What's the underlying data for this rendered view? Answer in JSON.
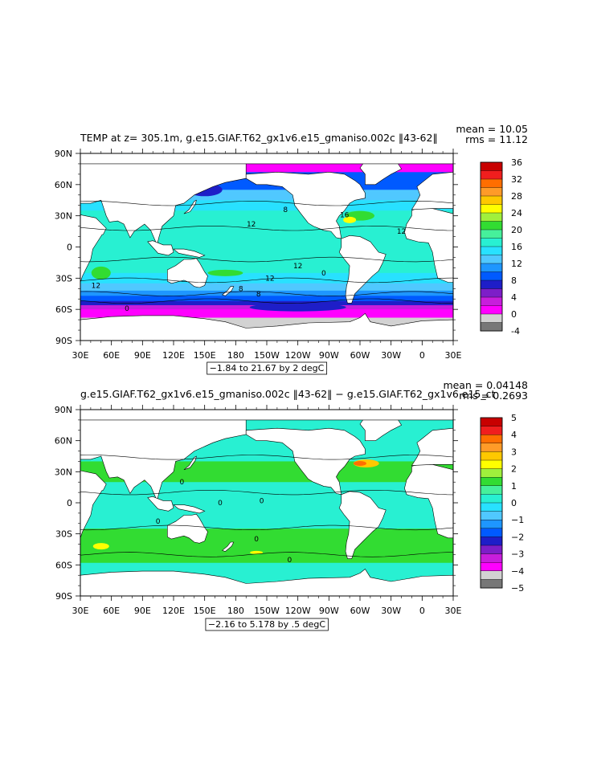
{
  "chart_data": [
    {
      "type": "heatmap",
      "title": "TEMP at z= 305.1m, g.e15.GIAF.T62_gx1v6.e15_gmaniso.002c ‖43-62‖",
      "stat_mean": "mean = 10.05",
      "stat_rms": "rms = 11.12",
      "range_label": "−1.84 to 21.67 by 2 degC",
      "xlim": [
        30,
        390
      ],
      "ylim": [
        -90,
        90
      ],
      "x_ticks": [
        {
          "v": 30,
          "label": "30E"
        },
        {
          "v": 60,
          "label": "60E"
        },
        {
          "v": 90,
          "label": "90E"
        },
        {
          "v": 120,
          "label": "120E"
        },
        {
          "v": 150,
          "label": "150E"
        },
        {
          "v": 180,
          "label": "180"
        },
        {
          "v": 210,
          "label": "150W"
        },
        {
          "v": 240,
          "label": "120W"
        },
        {
          "v": 270,
          "label": "90W"
        },
        {
          "v": 300,
          "label": "60W"
        },
        {
          "v": 330,
          "label": "30W"
        },
        {
          "v": 360,
          "label": "0"
        },
        {
          "v": 390,
          "label": "30E"
        }
      ],
      "y_ticks": [
        {
          "v": 90,
          "label": "90N"
        },
        {
          "v": 60,
          "label": "60N"
        },
        {
          "v": 30,
          "label": "30N"
        },
        {
          "v": 0,
          "label": "0"
        },
        {
          "v": -30,
          "label": "30S"
        },
        {
          "v": -60,
          "label": "60S"
        },
        {
          "v": -90,
          "label": "90S"
        }
      ],
      "colorbar": {
        "labels": [
          "36",
          "32",
          "28",
          "24",
          "20",
          "16",
          "12",
          "8",
          "4",
          "0",
          "-4"
        ],
        "colors": [
          "#c80000",
          "#f01e1e",
          "#ff6e00",
          "#ff9b28",
          "#ffc800",
          "#ffff00",
          "#a0f03c",
          "#32dc32",
          "#46f09b",
          "#28f0d2",
          "#28e1ff",
          "#50c8ff",
          "#1e96ff",
          "#005aff",
          "#1e1ec8",
          "#7d1ec8",
          "#c81edc",
          "#ff00ff",
          "#d2d2d2",
          "#777777"
        ]
      },
      "contour_labels": [
        {
          "lon": 195,
          "lat": 22,
          "text": "12"
        },
        {
          "lon": 240,
          "lat": -18,
          "text": "12"
        },
        {
          "lon": 340,
          "lat": 15,
          "text": "12"
        },
        {
          "lon": 285,
          "lat": 31,
          "text": "16"
        },
        {
          "lon": 213,
          "lat": -30,
          "text": "12"
        },
        {
          "lon": 185,
          "lat": -40,
          "text": "8"
        },
        {
          "lon": 45,
          "lat": -37,
          "text": "12"
        },
        {
          "lon": 202,
          "lat": -45,
          "text": "8"
        },
        {
          "lon": 228,
          "lat": 36,
          "text": "8"
        },
        {
          "lon": 75,
          "lat": -59,
          "text": "0"
        },
        {
          "lon": 265,
          "lat": -25,
          "text": "0"
        }
      ]
    },
    {
      "type": "heatmap",
      "title": "g.e15.GIAF.T62_gx1v6.e15_gmaniso.002c ‖43-62‖ − g.e15.GIAF.T62_gx1v6.e15_ct",
      "stat_mean": "mean = 0.04148",
      "stat_rms": "rms = 0.2693",
      "range_label": "−2.16 to 5.178 by .5 degC",
      "xlim": [
        30,
        390
      ],
      "ylim": [
        -90,
        90
      ],
      "x_ticks": [
        {
          "v": 30,
          "label": "30E"
        },
        {
          "v": 60,
          "label": "60E"
        },
        {
          "v": 90,
          "label": "90E"
        },
        {
          "v": 120,
          "label": "120E"
        },
        {
          "v": 150,
          "label": "150E"
        },
        {
          "v": 180,
          "label": "180"
        },
        {
          "v": 210,
          "label": "150W"
        },
        {
          "v": 240,
          "label": "120W"
        },
        {
          "v": 270,
          "label": "90W"
        },
        {
          "v": 300,
          "label": "60W"
        },
        {
          "v": 330,
          "label": "30W"
        },
        {
          "v": 360,
          "label": "0"
        },
        {
          "v": 390,
          "label": "30E"
        }
      ],
      "y_ticks": [
        {
          "v": 90,
          "label": "90N"
        },
        {
          "v": 60,
          "label": "60N"
        },
        {
          "v": 30,
          "label": "30N"
        },
        {
          "v": 0,
          "label": "0"
        },
        {
          "v": -30,
          "label": "30S"
        },
        {
          "v": -60,
          "label": "60S"
        },
        {
          "v": -90,
          "label": "90S"
        }
      ],
      "colorbar": {
        "labels": [
          "5",
          "4",
          "3",
          "2",
          "1",
          "0",
          "−1",
          "−2",
          "−3",
          "−4",
          "−5"
        ],
        "colors": [
          "#c80000",
          "#f01e1e",
          "#ff6e00",
          "#ff9b28",
          "#ffc800",
          "#ffff00",
          "#a0f03c",
          "#32dc32",
          "#46f09b",
          "#28f0d2",
          "#28e1ff",
          "#50c8ff",
          "#1e96ff",
          "#005aff",
          "#1e1ec8",
          "#7d1ec8",
          "#c81edc",
          "#ff00ff",
          "#d2d2d2",
          "#777777"
        ]
      },
      "contour_labels": [
        {
          "lon": 165,
          "lat": 0,
          "text": "0"
        },
        {
          "lon": 205,
          "lat": 2,
          "text": "0"
        },
        {
          "lon": 200,
          "lat": -35,
          "text": "0"
        },
        {
          "lon": 232,
          "lat": -55,
          "text": "0"
        },
        {
          "lon": 128,
          "lat": 20,
          "text": "0"
        },
        {
          "lon": 105,
          "lat": -18,
          "text": "0"
        }
      ]
    }
  ]
}
